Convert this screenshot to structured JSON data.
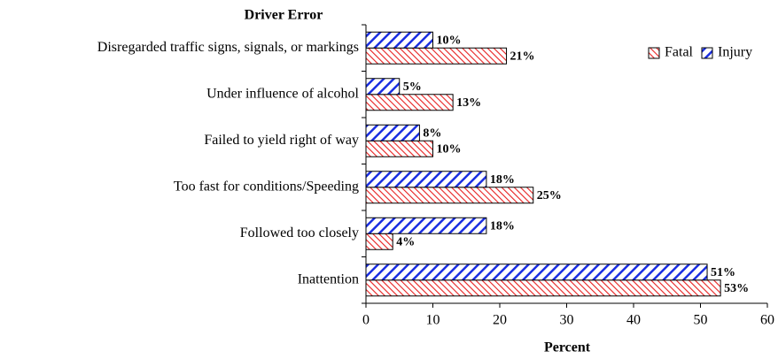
{
  "chart_data": {
    "type": "hbar",
    "title": "Driver Error",
    "xlabel": "Percent",
    "categories": [
      "Disregarded traffic signs, signals, or markings",
      "Under influence of alcohol",
      "Failed to yield right of way",
      "Too fast for conditions/Speeding",
      "Followed too closely",
      "Inattention"
    ],
    "series": [
      {
        "name": "Fatal",
        "color": "#e82020",
        "values": [
          21,
          13,
          10,
          25,
          4,
          53
        ],
        "value_labels": [
          "21%",
          "13%",
          "10%",
          "25%",
          "4%",
          "53%"
        ]
      },
      {
        "name": "Injury",
        "color": "#1a2ee0",
        "values": [
          10,
          5,
          8,
          18,
          18,
          51
        ],
        "value_labels": [
          "10%",
          "5%",
          "8%",
          "18%",
          "18%",
          "51%"
        ]
      }
    ],
    "xlim": [
      0,
      60
    ],
    "xticks": [
      0,
      10,
      20,
      30,
      40,
      50,
      60
    ],
    "legend": "upper right"
  }
}
